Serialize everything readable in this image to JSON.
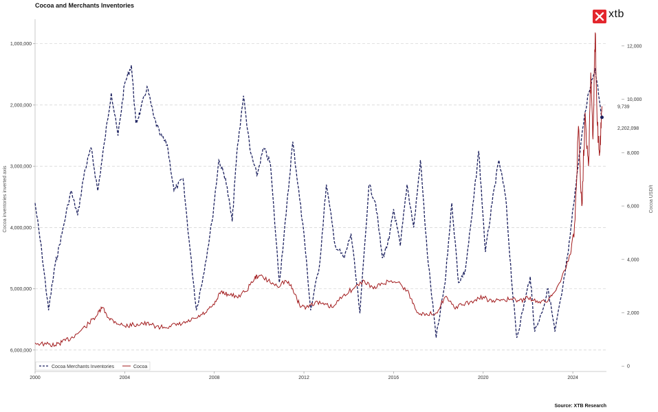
{
  "chart_data": {
    "type": "line",
    "title": "Cocoa and Merchants Inventories",
    "source": "Source: XTB Research",
    "logo": "xtb",
    "x_ticks": [
      "2000",
      "2004",
      "2008",
      "2012",
      "2016",
      "2020",
      "2024"
    ],
    "xlim": [
      2000,
      2025.5
    ],
    "left_axis": {
      "label": "Cocoa inventories inverted axis",
      "inverted": true,
      "ylim": [
        600000,
        6350000
      ],
      "ticks": [
        "1,000,000",
        "2,000,000",
        "3,000,000",
        "4,000,000",
        "5,000,000",
        "6,000,000"
      ],
      "tick_values": [
        1000000,
        2000000,
        3000000,
        4000000,
        5000000,
        6000000
      ]
    },
    "right_axis": {
      "label": "Cocoa USD/t",
      "ylim": [
        -200,
        13000
      ],
      "ticks": [
        "0",
        "2,000",
        "4,000",
        "6,000",
        "8,000",
        "10,000",
        "12,000"
      ],
      "tick_values": [
        0,
        2000,
        4000,
        6000,
        8000,
        10000,
        12000
      ]
    },
    "grid": "horizontal dashed",
    "legend_position": "bottom-left",
    "series": [
      {
        "name": "Cocoa Merchants Inventories",
        "axis": "left",
        "color": "#1a1f5e",
        "style": "dashed",
        "last_value_label": "2,202,098",
        "points": [
          [
            2000.0,
            3600000
          ],
          [
            2000.3,
            4400000
          ],
          [
            2000.6,
            5350000
          ],
          [
            2000.9,
            4600000
          ],
          [
            2001.2,
            4100000
          ],
          [
            2001.6,
            3400000
          ],
          [
            2001.9,
            3800000
          ],
          [
            2002.2,
            3100000
          ],
          [
            2002.5,
            2700000
          ],
          [
            2002.8,
            3400000
          ],
          [
            2003.1,
            2600000
          ],
          [
            2003.4,
            1800000
          ],
          [
            2003.7,
            2500000
          ],
          [
            2004.0,
            1650000
          ],
          [
            2004.3,
            1350000
          ],
          [
            2004.5,
            2300000
          ],
          [
            2004.7,
            2100000
          ],
          [
            2005.0,
            1700000
          ],
          [
            2005.3,
            2200000
          ],
          [
            2005.6,
            2500000
          ],
          [
            2005.9,
            2650000
          ],
          [
            2006.2,
            3400000
          ],
          [
            2006.6,
            3200000
          ],
          [
            2006.9,
            4300000
          ],
          [
            2007.2,
            5350000
          ],
          [
            2007.5,
            4800000
          ],
          [
            2007.9,
            3900000
          ],
          [
            2008.2,
            2900000
          ],
          [
            2008.5,
            3200000
          ],
          [
            2008.8,
            3900000
          ],
          [
            2009.0,
            2800000
          ],
          [
            2009.3,
            1850000
          ],
          [
            2009.6,
            2750000
          ],
          [
            2009.9,
            3150000
          ],
          [
            2010.2,
            2700000
          ],
          [
            2010.5,
            2950000
          ],
          [
            2010.9,
            4900000
          ],
          [
            2011.2,
            3800000
          ],
          [
            2011.5,
            2600000
          ],
          [
            2011.8,
            3500000
          ],
          [
            2012.0,
            4100000
          ],
          [
            2012.3,
            5350000
          ],
          [
            2012.7,
            4600000
          ],
          [
            2013.0,
            3300000
          ],
          [
            2013.4,
            4300000
          ],
          [
            2013.8,
            4500000
          ],
          [
            2014.1,
            4100000
          ],
          [
            2014.5,
            5400000
          ],
          [
            2014.9,
            3300000
          ],
          [
            2015.2,
            3600000
          ],
          [
            2015.5,
            4500000
          ],
          [
            2015.8,
            4200000
          ],
          [
            2016.0,
            3700000
          ],
          [
            2016.3,
            4300000
          ],
          [
            2016.6,
            3300000
          ],
          [
            2016.9,
            4000000
          ],
          [
            2017.2,
            2900000
          ],
          [
            2017.5,
            4400000
          ],
          [
            2017.9,
            5800000
          ],
          [
            2018.3,
            4900000
          ],
          [
            2018.6,
            3600000
          ],
          [
            2018.9,
            4900000
          ],
          [
            2019.2,
            4700000
          ],
          [
            2019.5,
            3800000
          ],
          [
            2019.8,
            2750000
          ],
          [
            2020.1,
            4400000
          ],
          [
            2020.4,
            3600000
          ],
          [
            2020.7,
            2900000
          ],
          [
            2021.0,
            3500000
          ],
          [
            2021.3,
            5000000
          ],
          [
            2021.5,
            5800000
          ],
          [
            2021.8,
            5300000
          ],
          [
            2022.1,
            4800000
          ],
          [
            2022.3,
            5700000
          ],
          [
            2022.6,
            5400000
          ],
          [
            2022.9,
            5000000
          ],
          [
            2023.2,
            5700000
          ],
          [
            2023.5,
            5100000
          ],
          [
            2023.8,
            4400000
          ],
          [
            2024.1,
            3400000
          ],
          [
            2024.4,
            2500000
          ],
          [
            2024.7,
            1800000
          ],
          [
            2025.0,
            1400000
          ],
          [
            2025.3,
            2202098
          ]
        ]
      },
      {
        "name": "Cocoa",
        "axis": "right",
        "color": "#a1191b",
        "style": "solid",
        "last_value_label": "9,739",
        "points": [
          [
            2000.0,
            870
          ],
          [
            2000.5,
            820
          ],
          [
            2000.9,
            780
          ],
          [
            2001.2,
            900
          ],
          [
            2001.6,
            1050
          ],
          [
            2002.0,
            1300
          ],
          [
            2002.4,
            1600
          ],
          [
            2002.8,
            1950
          ],
          [
            2003.0,
            2200
          ],
          [
            2003.3,
            1800
          ],
          [
            2003.6,
            1650
          ],
          [
            2004.0,
            1500
          ],
          [
            2004.4,
            1550
          ],
          [
            2004.8,
            1600
          ],
          [
            2005.2,
            1550
          ],
          [
            2005.6,
            1450
          ],
          [
            2006.0,
            1500
          ],
          [
            2006.4,
            1550
          ],
          [
            2006.8,
            1650
          ],
          [
            2007.2,
            1800
          ],
          [
            2007.6,
            2000
          ],
          [
            2008.0,
            2300
          ],
          [
            2008.3,
            2800
          ],
          [
            2008.6,
            2700
          ],
          [
            2009.0,
            2600
          ],
          [
            2009.4,
            2800
          ],
          [
            2009.8,
            3300
          ],
          [
            2010.0,
            3400
          ],
          [
            2010.4,
            3200
          ],
          [
            2010.8,
            3000
          ],
          [
            2011.2,
            3200
          ],
          [
            2011.5,
            2900
          ],
          [
            2011.8,
            2300
          ],
          [
            2012.1,
            2200
          ],
          [
            2012.5,
            2400
          ],
          [
            2012.9,
            2300
          ],
          [
            2013.3,
            2200
          ],
          [
            2013.8,
            2700
          ],
          [
            2014.2,
            2900
          ],
          [
            2014.7,
            3200
          ],
          [
            2015.1,
            2900
          ],
          [
            2015.5,
            3100
          ],
          [
            2015.9,
            3200
          ],
          [
            2016.3,
            3100
          ],
          [
            2016.7,
            2700
          ],
          [
            2017.0,
            2100
          ],
          [
            2017.4,
            1900
          ],
          [
            2017.9,
            2000
          ],
          [
            2018.3,
            2600
          ],
          [
            2018.7,
            2200
          ],
          [
            2019.1,
            2300
          ],
          [
            2019.6,
            2450
          ],
          [
            2020.0,
            2600
          ],
          [
            2020.4,
            2400
          ],
          [
            2020.8,
            2500
          ],
          [
            2021.2,
            2500
          ],
          [
            2021.6,
            2450
          ],
          [
            2022.0,
            2550
          ],
          [
            2022.4,
            2450
          ],
          [
            2022.8,
            2400
          ],
          [
            2023.1,
            2700
          ],
          [
            2023.5,
            3300
          ],
          [
            2023.9,
            4200
          ],
          [
            2024.1,
            5500
          ],
          [
            2024.25,
            9000
          ],
          [
            2024.4,
            6000
          ],
          [
            2024.55,
            9500
          ],
          [
            2024.7,
            7500
          ],
          [
            2024.8,
            11000
          ],
          [
            2024.9,
            8500
          ],
          [
            2025.0,
            12500
          ],
          [
            2025.1,
            9000
          ],
          [
            2025.2,
            8000
          ],
          [
            2025.3,
            9739
          ]
        ]
      }
    ]
  }
}
